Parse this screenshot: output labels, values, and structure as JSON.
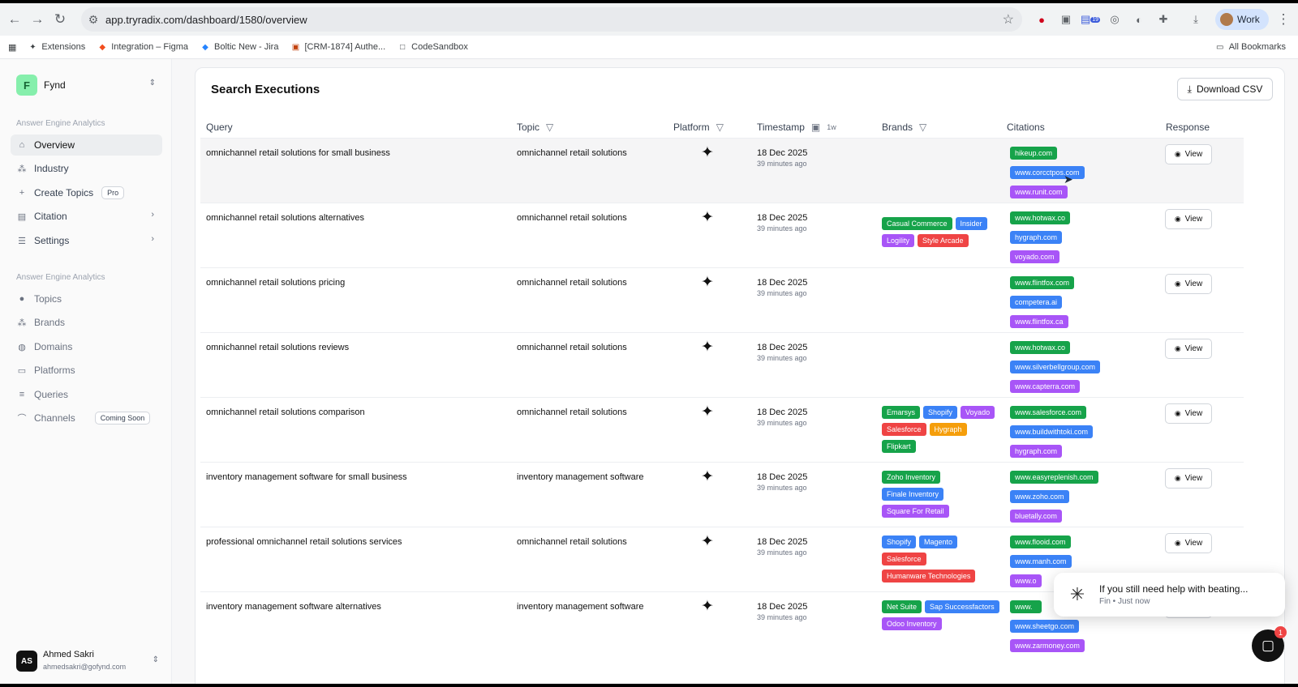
{
  "browser": {
    "url": "app.tryradix.com/dashboard/1580/overview",
    "profile_label": "Work",
    "bookmarks": [
      "Extensions",
      "Integration – Figma",
      "Boltic New - Jira",
      "[CRM-1874] Authe...",
      "CodeSandbox"
    ],
    "all_bookmarks": "All Bookmarks",
    "ext_badge": "19"
  },
  "sidebar": {
    "org_initial": "F",
    "org_name": "Fynd",
    "section1": "Answer Engine Analytics",
    "items1": [
      "Overview",
      "Industry",
      "Create Topics",
      "Citation",
      "Settings"
    ],
    "pro_tag": "Pro",
    "section2": "Answer Engine Analytics",
    "items2": [
      "Topics",
      "Brands",
      "Domains",
      "Platforms",
      "Queries",
      "Channels"
    ],
    "coming_soon": "Coming Soon",
    "user": {
      "initials": "AS",
      "name": "Ahmed Sakri",
      "email": "ahmedsakri@gofynd.com"
    }
  },
  "card": {
    "title": "Search Executions",
    "download_label": "Download CSV",
    "columns": {
      "query": "Query",
      "topic": "Topic",
      "platform": "Platform",
      "timestamp": "Timestamp",
      "range": "1w",
      "brands": "Brands",
      "citations": "Citations",
      "response": "Response"
    },
    "view_label": "View",
    "rows": [
      {
        "query": "omnichannel retail solutions for small business",
        "topic": "omnichannel retail solutions",
        "date": "18 Dec 2025",
        "ago": "39 minutes ago",
        "brands": [],
        "citations": [
          "hikeup.com",
          "www.corcctpos.com",
          "www.runit.com"
        ]
      },
      {
        "query": "omnichannel retail solutions alternatives",
        "topic": "omnichannel retail solutions",
        "date": "18 Dec 2025",
        "ago": "39 minutes ago",
        "brands": [
          "Casual Commerce",
          "Insider",
          "Logility",
          "Style Arcade"
        ],
        "citations": [
          "www.hotwax.co",
          "hygraph.com",
          "voyado.com"
        ]
      },
      {
        "query": "omnichannel retail solutions pricing",
        "topic": "omnichannel retail solutions",
        "date": "18 Dec 2025",
        "ago": "39 minutes ago",
        "brands": [],
        "citations": [
          "www.flintfox.com",
          "competera.ai",
          "www.flintfox.ca"
        ]
      },
      {
        "query": "omnichannel retail solutions reviews",
        "topic": "omnichannel retail solutions",
        "date": "18 Dec 2025",
        "ago": "39 minutes ago",
        "brands": [],
        "citations": [
          "www.hotwax.co",
          "www.silverbellgroup.com",
          "www.capterra.com"
        ]
      },
      {
        "query": "omnichannel retail solutions comparison",
        "topic": "omnichannel retail solutions",
        "date": "18 Dec 2025",
        "ago": "39 minutes ago",
        "brands": [
          "Emarsys",
          "Shopify",
          "Voyado",
          "Salesforce",
          "Hygraph",
          "Flipkart"
        ],
        "citations": [
          "www.salesforce.com",
          "www.buildwithtoki.com",
          "hygraph.com"
        ]
      },
      {
        "query": "inventory management software for small business",
        "topic": "inventory management software",
        "date": "18 Dec 2025",
        "ago": "39 minutes ago",
        "brands": [
          "Zoho Inventory",
          "Finale Inventory",
          "Square For Retail"
        ],
        "citations": [
          "www.easyreplenish.com",
          "www.zoho.com",
          "bluetally.com"
        ]
      },
      {
        "query": "professional omnichannel retail solutions services",
        "topic": "omnichannel retail solutions",
        "date": "18 Dec 2025",
        "ago": "39 minutes ago",
        "brands": [
          "Shopify",
          "Magento",
          "Salesforce",
          "Humanware Technologies"
        ],
        "citations": [
          "www.flooid.com",
          "www.manh.com",
          "www.o"
        ]
      },
      {
        "query": "inventory management software alternatives",
        "topic": "inventory management software",
        "date": "18 Dec 2025",
        "ago": "39 minutes ago",
        "brands": [
          "Net Suite",
          "Sap Successfactors",
          "Odoo Inventory"
        ],
        "citations": [
          "www.",
          "www.sheetgo.com",
          "www.zarmoney.com"
        ]
      }
    ]
  },
  "chip_colors": {
    "Casual Commerce": "#16a34a",
    "Insider": "#3b82f6",
    "Logility": "#a855f7",
    "Style Arcade": "#ef4444",
    "Emarsys": "#16a34a",
    "Shopify": "#3b82f6",
    "Voyado": "#a855f7",
    "Salesforce": "#ef4444",
    "Hygraph": "#f59e0b",
    "Flipkart": "#16a34a",
    "Zoho Inventory": "#16a34a",
    "Finale Inventory": "#3b82f6",
    "Square For Retail": "#a855f7",
    "Magento": "#3b82f6",
    "Humanware Technologies": "#ef4444",
    "Net Suite": "#16a34a",
    "Sap Successfactors": "#3b82f6",
    "Odoo Inventory": "#a855f7"
  },
  "citation_colors": [
    "#16a34a",
    "#3b82f6",
    "#a855f7"
  ],
  "chat": {
    "message": "If you still need help with beating...",
    "sender": "Fin",
    "when": "Just now",
    "badge": "1"
  }
}
